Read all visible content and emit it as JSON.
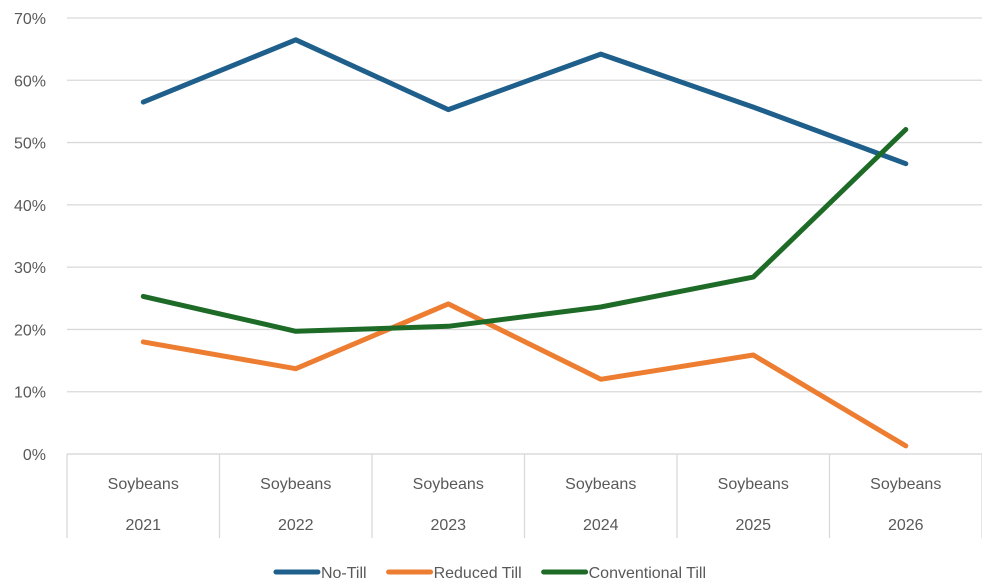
{
  "chart_data": {
    "type": "line",
    "categories": [
      [
        "Soybeans",
        "2021"
      ],
      [
        "Soybeans",
        "2022"
      ],
      [
        "Soybeans",
        "2023"
      ],
      [
        "Soybeans",
        "2024"
      ],
      [
        "Soybeans",
        "2025"
      ],
      [
        "Soybeans",
        "2026"
      ]
    ],
    "series": [
      {
        "name": "No-Till",
        "color": "#1f5f8b",
        "values": [
          0.565,
          0.665,
          0.553,
          0.642,
          0.557,
          0.466
        ]
      },
      {
        "name": "Reduced Till",
        "color": "#ed7d31",
        "values": [
          0.18,
          0.137,
          0.241,
          0.12,
          0.159,
          0.013
        ]
      },
      {
        "name": "Conventional Till",
        "color": "#1e6b28",
        "values": [
          0.253,
          0.197,
          0.205,
          0.236,
          0.284,
          0.521
        ]
      }
    ],
    "ylim": [
      0,
      0.7
    ],
    "yticks": [
      0,
      0.1,
      0.2,
      0.3,
      0.4,
      0.5,
      0.6,
      0.7
    ],
    "ytick_labels": [
      "0%",
      "10%",
      "20%",
      "30%",
      "40%",
      "50%",
      "60%",
      "70%"
    ],
    "grid": true,
    "legend_position": "bottom",
    "title": "",
    "xlabel": "",
    "ylabel": ""
  }
}
